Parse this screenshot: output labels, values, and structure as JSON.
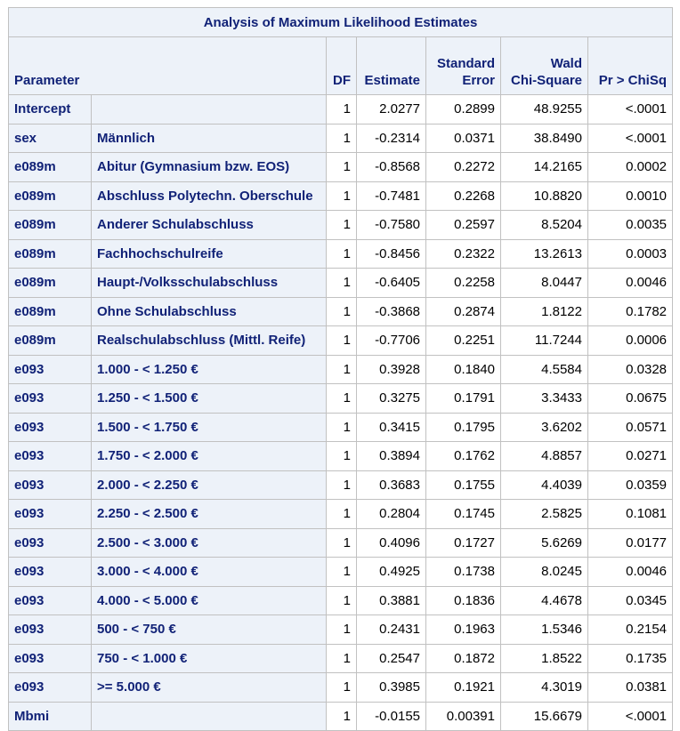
{
  "title": "Analysis of Maximum Likelihood Estimates",
  "headers": {
    "parameter": "Parameter",
    "df": "DF",
    "estimate": "Estimate",
    "stderr_line1": "Standard",
    "stderr_line2": "Error",
    "wald_line1": "Wald",
    "wald_line2": "Chi-Square",
    "prob": "Pr > ChiSq"
  },
  "rows": [
    {
      "param": "Intercept",
      "level": "",
      "df": "1",
      "estimate": "2.0277",
      "se": "0.2899",
      "wald": "48.9255",
      "p": "<.0001"
    },
    {
      "param": "sex",
      "level": "Männlich",
      "df": "1",
      "estimate": "-0.2314",
      "se": "0.0371",
      "wald": "38.8490",
      "p": "<.0001"
    },
    {
      "param": "e089m",
      "level": "Abitur (Gymnasium bzw. EOS)",
      "df": "1",
      "estimate": "-0.8568",
      "se": "0.2272",
      "wald": "14.2165",
      "p": "0.0002"
    },
    {
      "param": "e089m",
      "level": "Abschluss Polytechn. Oberschule",
      "df": "1",
      "estimate": "-0.7481",
      "se": "0.2268",
      "wald": "10.8820",
      "p": "0.0010"
    },
    {
      "param": "e089m",
      "level": "Anderer Schulabschluss",
      "df": "1",
      "estimate": "-0.7580",
      "se": "0.2597",
      "wald": "8.5204",
      "p": "0.0035"
    },
    {
      "param": "e089m",
      "level": "Fachhochschulreife",
      "df": "1",
      "estimate": "-0.8456",
      "se": "0.2322",
      "wald": "13.2613",
      "p": "0.0003"
    },
    {
      "param": "e089m",
      "level": "Haupt-/Volksschulabschluss",
      "df": "1",
      "estimate": "-0.6405",
      "se": "0.2258",
      "wald": "8.0447",
      "p": "0.0046"
    },
    {
      "param": "e089m",
      "level": "Ohne Schulabschluss",
      "df": "1",
      "estimate": "-0.3868",
      "se": "0.2874",
      "wald": "1.8122",
      "p": "0.1782"
    },
    {
      "param": "e089m",
      "level": "Realschulabschluss (Mittl. Reife)",
      "df": "1",
      "estimate": "-0.7706",
      "se": "0.2251",
      "wald": "11.7244",
      "p": "0.0006"
    },
    {
      "param": "e093",
      "level": "1.000 - < 1.250 €",
      "df": "1",
      "estimate": "0.3928",
      "se": "0.1840",
      "wald": "4.5584",
      "p": "0.0328"
    },
    {
      "param": "e093",
      "level": "1.250 - < 1.500 €",
      "df": "1",
      "estimate": "0.3275",
      "se": "0.1791",
      "wald": "3.3433",
      "p": "0.0675"
    },
    {
      "param": "e093",
      "level": "1.500 - < 1.750 €",
      "df": "1",
      "estimate": "0.3415",
      "se": "0.1795",
      "wald": "3.6202",
      "p": "0.0571"
    },
    {
      "param": "e093",
      "level": "1.750 - < 2.000 €",
      "df": "1",
      "estimate": "0.3894",
      "se": "0.1762",
      "wald": "4.8857",
      "p": "0.0271"
    },
    {
      "param": "e093",
      "level": "2.000 - < 2.250 €",
      "df": "1",
      "estimate": "0.3683",
      "se": "0.1755",
      "wald": "4.4039",
      "p": "0.0359"
    },
    {
      "param": "e093",
      "level": "2.250 - < 2.500 €",
      "df": "1",
      "estimate": "0.2804",
      "se": "0.1745",
      "wald": "2.5825",
      "p": "0.1081"
    },
    {
      "param": "e093",
      "level": "2.500 - < 3.000 €",
      "df": "1",
      "estimate": "0.4096",
      "se": "0.1727",
      "wald": "5.6269",
      "p": "0.0177"
    },
    {
      "param": "e093",
      "level": "3.000 - < 4.000 €",
      "df": "1",
      "estimate": "0.4925",
      "se": "0.1738",
      "wald": "8.0245",
      "p": "0.0046"
    },
    {
      "param": "e093",
      "level": "4.000 - < 5.000 €",
      "df": "1",
      "estimate": "0.3881",
      "se": "0.1836",
      "wald": "4.4678",
      "p": "0.0345"
    },
    {
      "param": "e093",
      "level": "500 - < 750 €",
      "df": "1",
      "estimate": "0.2431",
      "se": "0.1963",
      "wald": "1.5346",
      "p": "0.2154"
    },
    {
      "param": "e093",
      "level": "750 - < 1.000 €",
      "df": "1",
      "estimate": "0.2547",
      "se": "0.1872",
      "wald": "1.8522",
      "p": "0.1735"
    },
    {
      "param": "e093",
      "level": ">= 5.000 €",
      "df": "1",
      "estimate": "0.3985",
      "se": "0.1921",
      "wald": "4.3019",
      "p": "0.0381"
    },
    {
      "param": "Mbmi",
      "level": "",
      "df": "1",
      "estimate": "-0.0155",
      "se": "0.00391",
      "wald": "15.6679",
      "p": "<.0001"
    }
  ]
}
